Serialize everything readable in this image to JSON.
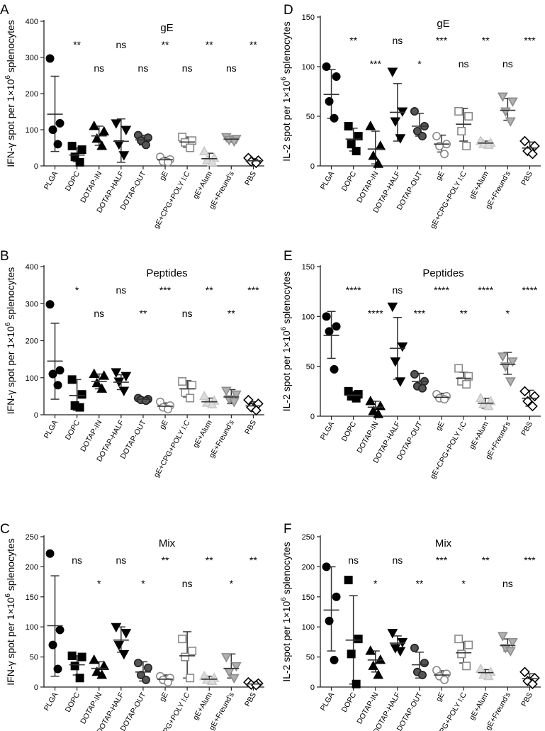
{
  "categories": [
    "PLGA",
    "DOPC",
    "DOTAP-IN",
    "DOTAP-HALF",
    "DOTAP-OUT",
    "gE",
    "gE+CPG+POLY I:C",
    "gE+Alum",
    "gE+Freund's",
    "PBS"
  ],
  "marker_styles": [
    {
      "shape": "circle",
      "fill": "#000000",
      "stroke": "#000000"
    },
    {
      "shape": "square",
      "fill": "#000000",
      "stroke": "#000000"
    },
    {
      "shape": "triangle",
      "fill": "#000000",
      "stroke": "#000000"
    },
    {
      "shape": "triangle-down",
      "fill": "#000000",
      "stroke": "#000000"
    },
    {
      "shape": "circle",
      "fill": "#555555",
      "stroke": "#222222"
    },
    {
      "shape": "circle",
      "fill": "#ffffff",
      "stroke": "#8a8a8a"
    },
    {
      "shape": "square",
      "fill": "#ffffff",
      "stroke": "#8a8a8a"
    },
    {
      "shape": "triangle",
      "fill": "#dcdcdc",
      "stroke": "#c8c8c8"
    },
    {
      "shape": "triangle-down",
      "fill": "#b0b0b0",
      "stroke": "#8c8c8c"
    },
    {
      "shape": "diamond",
      "fill": "#ffffff",
      "stroke": "#000000"
    }
  ],
  "chart_data": [
    {
      "panel": "A",
      "type": "scatter",
      "title": "gE",
      "ylabel_main": "IFN-γ spot per 1×10",
      "ylabel_sup": "6",
      "ylabel_end": " splenocytes",
      "ylim": [
        0,
        400
      ],
      "yticks": [
        0,
        100,
        200,
        300,
        400
      ],
      "significance": [
        "",
        "**",
        "ns",
        "ns",
        "ns",
        "**",
        "ns",
        "**",
        "ns",
        "**"
      ],
      "sig_row": [
        "",
        "high",
        "low",
        "high",
        "low",
        "high",
        "low",
        "high",
        "low",
        "high"
      ],
      "groups": [
        {
          "points": [
            297,
            118,
            100,
            60
          ],
          "mean": 143,
          "error": [
            40,
            248
          ]
        },
        {
          "points": [
            55,
            45,
            25,
            10
          ],
          "mean": 30,
          "error": [
            12,
            50
          ]
        },
        {
          "points": [
            110,
            95,
            75,
            55
          ],
          "mean": 83,
          "error": [
            57,
            110
          ]
        },
        {
          "points": [
            118,
            100,
            60,
            30
          ],
          "mean": 68,
          "error": [
            10,
            130
          ]
        },
        {
          "points": [
            85,
            78,
            70,
            58
          ],
          "mean": 72,
          "error": [
            58,
            85
          ]
        },
        {
          "points": [
            25,
            18,
            12,
            10
          ],
          "mean": 17,
          "error": [
            10,
            24
          ]
        },
        {
          "points": [
            80,
            70,
            65,
            50
          ],
          "mean": 66,
          "error": [
            52,
            80
          ]
        },
        {
          "points": [
            40,
            22,
            15,
            10
          ],
          "mean": 20,
          "error": [
            8,
            35
          ]
        },
        {
          "points": [
            80,
            75,
            72,
            68
          ],
          "mean": 74,
          "error": [
            66,
            82
          ]
        },
        {
          "points": [
            22,
            15,
            12,
            8
          ],
          "mean": 14,
          "error": [
            8,
            20
          ]
        }
      ]
    },
    {
      "panel": "B",
      "type": "scatter",
      "title": "Peptides",
      "ylabel_main": "IFN-γ spot per 1×10",
      "ylabel_sup": "6",
      "ylabel_end": " splenocytes",
      "ylim": [
        0,
        400
      ],
      "yticks": [
        0,
        100,
        200,
        300,
        400
      ],
      "significance": [
        "",
        "*",
        "ns",
        "ns",
        "**",
        "***",
        "ns",
        "**",
        "**",
        "***"
      ],
      "sig_row": [
        "",
        "high",
        "low",
        "high",
        "low",
        "high",
        "low",
        "high",
        "low",
        "high"
      ],
      "groups": [
        {
          "points": [
            298,
            120,
            110,
            80
          ],
          "mean": 145,
          "error": [
            42,
            247
          ]
        },
        {
          "points": [
            95,
            55,
            25,
            20
          ],
          "mean": 52,
          "error": [
            12,
            95
          ]
        },
        {
          "points": [
            110,
            105,
            85,
            70
          ],
          "mean": 90,
          "error": [
            70,
            110
          ]
        },
        {
          "points": [
            115,
            105,
            90,
            65
          ],
          "mean": 88,
          "error": [
            68,
            108
          ]
        },
        {
          "points": [
            45,
            42,
            40,
            38
          ],
          "mean": 42,
          "error": [
            38,
            46
          ]
        },
        {
          "points": [
            35,
            25,
            20,
            15
          ],
          "mean": 23,
          "error": [
            14,
            32
          ]
        },
        {
          "points": [
            90,
            80,
            60,
            45
          ],
          "mean": 70,
          "error": [
            48,
            92
          ]
        },
        {
          "points": [
            50,
            38,
            32,
            28
          ],
          "mean": 35,
          "error": [
            26,
            45
          ]
        },
        {
          "points": [
            65,
            55,
            42,
            35
          ],
          "mean": 48,
          "error": [
            30,
            68
          ]
        },
        {
          "points": [
            40,
            30,
            20,
            12
          ],
          "mean": 24,
          "error": [
            12,
            35
          ]
        }
      ]
    },
    {
      "panel": "C",
      "type": "scatter",
      "title": "Mix",
      "ylabel_main": "IFN-γ spot per 1×10",
      "ylabel_sup": "6",
      "ylabel_end": " splenocytes",
      "ylim": [
        0,
        250
      ],
      "yticks": [
        0,
        50,
        100,
        150,
        200,
        250
      ],
      "significance": [
        "",
        "ns",
        "*",
        "ns",
        "*",
        "**",
        "ns",
        "**",
        "*",
        "**"
      ],
      "sig_row": [
        "",
        "high",
        "low",
        "high",
        "low",
        "high",
        "low",
        "high",
        "low",
        "high"
      ],
      "groups": [
        {
          "points": [
            222,
            95,
            70,
            30
          ],
          "mean": 102,
          "error": [
            18,
            185
          ]
        },
        {
          "points": [
            52,
            50,
            35,
            15
          ],
          "mean": 37,
          "error": [
            20,
            52
          ]
        },
        {
          "points": [
            45,
            35,
            25,
            20
          ],
          "mean": 31,
          "error": [
            20,
            42
          ]
        },
        {
          "points": [
            100,
            90,
            70,
            55
          ],
          "mean": 78,
          "error": [
            58,
            100
          ]
        },
        {
          "points": [
            40,
            32,
            20,
            12
          ],
          "mean": 25,
          "error": [
            10,
            42
          ]
        },
        {
          "points": [
            18,
            15,
            12,
            8
          ],
          "mean": 13,
          "error": [
            6,
            20
          ]
        },
        {
          "points": [
            80,
            60,
            50,
            15
          ],
          "mean": 52,
          "error": [
            15,
            92
          ]
        },
        {
          "points": [
            18,
            15,
            12,
            10
          ],
          "mean": 13,
          "error": [
            8,
            18
          ]
        },
        {
          "points": [
            50,
            35,
            25,
            15
          ],
          "mean": 31,
          "error": [
            15,
            55
          ]
        },
        {
          "points": [
            8,
            6,
            4,
            3
          ],
          "mean": 5,
          "error": [
            2,
            8
          ]
        }
      ]
    },
    {
      "panel": "D",
      "type": "scatter",
      "title": "gE",
      "ylabel_main": "IL-2 spot per 1×10",
      "ylabel_sup": "6",
      "ylabel_end": " splenocytes",
      "ylim": [
        0,
        150
      ],
      "yticks": [
        0,
        50,
        100,
        150
      ],
      "significance": [
        "",
        "**",
        "***",
        "ns",
        "*",
        "***",
        "ns",
        "**",
        "ns",
        "***"
      ],
      "sig_row": [
        "",
        "high",
        "low",
        "high",
        "low",
        "high",
        "low",
        "high",
        "low",
        "high"
      ],
      "groups": [
        {
          "points": [
            100,
            90,
            65,
            48
          ],
          "mean": 72,
          "error": [
            48,
            97
          ]
        },
        {
          "points": [
            40,
            30,
            22,
            15
          ],
          "mean": 27,
          "error": [
            15,
            38
          ]
        },
        {
          "points": [
            40,
            20,
            10,
            2
          ],
          "mean": 17,
          "error": [
            2,
            35
          ]
        },
        {
          "points": [
            95,
            55,
            45,
            28
          ],
          "mean": 54,
          "error": [
            25,
            83
          ]
        },
        {
          "points": [
            55,
            40,
            35,
            30
          ],
          "mean": 40,
          "error": [
            30,
            53
          ]
        },
        {
          "points": [
            30,
            22,
            20,
            12
          ],
          "mean": 22,
          "error": [
            14,
            31
          ]
        },
        {
          "points": [
            55,
            50,
            35,
            20
          ],
          "mean": 42,
          "error": [
            25,
            58
          ]
        },
        {
          "points": [
            25,
            23,
            22,
            21
          ],
          "mean": 23,
          "error": [
            21,
            25
          ]
        },
        {
          "points": [
            70,
            65,
            55,
            45
          ],
          "mean": 56,
          "error": [
            46,
            68
          ]
        },
        {
          "points": [
            25,
            20,
            15,
            12
          ],
          "mean": 18,
          "error": [
            12,
            24
          ]
        }
      ]
    },
    {
      "panel": "E",
      "type": "scatter",
      "title": "Peptides",
      "ylabel_main": "IL-2 spot per 1×10",
      "ylabel_sup": "6",
      "ylabel_end": " splenocytes",
      "ylim": [
        0,
        150
      ],
      "yticks": [
        0,
        50,
        100,
        150
      ],
      "significance": [
        "",
        "****",
        "****",
        "ns",
        "***",
        "****",
        "**",
        "****",
        "*",
        "****"
      ],
      "sig_row": [
        "",
        "high",
        "low",
        "high",
        "low",
        "high",
        "low",
        "high",
        "low",
        "high"
      ],
      "groups": [
        {
          "points": [
            100,
            90,
            85,
            47
          ],
          "mean": 81,
          "error": [
            58,
            105
          ]
        },
        {
          "points": [
            25,
            22,
            20,
            18
          ],
          "mean": 21,
          "error": [
            18,
            25
          ]
        },
        {
          "points": [
            15,
            10,
            5,
            2
          ],
          "mean": 9,
          "error": [
            2,
            15
          ]
        },
        {
          "points": [
            110,
            70,
            55,
            35
          ],
          "mean": 68,
          "error": [
            37,
            99
          ]
        },
        {
          "points": [
            42,
            35,
            30,
            28
          ],
          "mean": 35,
          "error": [
            28,
            43
          ]
        },
        {
          "points": [
            22,
            20,
            18,
            17
          ],
          "mean": 19,
          "error": [
            16,
            23
          ]
        },
        {
          "points": [
            48,
            40,
            35,
            32
          ],
          "mean": 38,
          "error": [
            33,
            44
          ]
        },
        {
          "points": [
            18,
            15,
            12,
            10
          ],
          "mean": 13,
          "error": [
            8,
            18
          ]
        },
        {
          "points": [
            60,
            55,
            50,
            35
          ],
          "mean": 52,
          "error": [
            42,
            64
          ]
        },
        {
          "points": [
            25,
            20,
            15,
            10
          ],
          "mean": 18,
          "error": [
            10,
            26
          ]
        }
      ]
    },
    {
      "panel": "F",
      "type": "scatter",
      "title": "Mix",
      "ylabel_main": "IL-2 spot per 1×10",
      "ylabel_sup": "6",
      "ylabel_end": " splenocytes",
      "ylim": [
        0,
        250
      ],
      "yticks": [
        0,
        50,
        100,
        150,
        200,
        250
      ],
      "significance": [
        "",
        "ns",
        "*",
        "ns",
        "**",
        "***",
        "*",
        "**",
        "ns",
        "***"
      ],
      "sig_row": [
        "",
        "high",
        "low",
        "high",
        "low",
        "high",
        "low",
        "high",
        "low",
        "high"
      ],
      "groups": [
        {
          "points": [
            200,
            150,
            110,
            45
          ],
          "mean": 128,
          "error": [
            60,
            200
          ]
        },
        {
          "points": [
            178,
            80,
            55,
            5
          ],
          "mean": 78,
          "error": [
            5,
            152
          ]
        },
        {
          "points": [
            60,
            45,
            35,
            20
          ],
          "mean": 45,
          "error": [
            25,
            60
          ]
        },
        {
          "points": [
            90,
            75,
            65,
            60
          ],
          "mean": 73,
          "error": [
            62,
            85
          ]
        },
        {
          "points": [
            65,
            40,
            25,
            20
          ],
          "mean": 37,
          "error": [
            15,
            58
          ]
        },
        {
          "points": [
            28,
            22,
            18,
            12
          ],
          "mean": 20,
          "error": [
            13,
            27
          ]
        },
        {
          "points": [
            80,
            70,
            55,
            35
          ],
          "mean": 57,
          "error": [
            40,
            75
          ]
        },
        {
          "points": [
            30,
            25,
            20,
            18
          ],
          "mean": 24,
          "error": [
            19,
            29
          ]
        },
        {
          "points": [
            85,
            75,
            65,
            60
          ],
          "mean": 69,
          "error": [
            60,
            80
          ]
        },
        {
          "points": [
            25,
            15,
            10,
            5
          ],
          "mean": 14,
          "error": [
            5,
            22
          ]
        }
      ]
    }
  ]
}
